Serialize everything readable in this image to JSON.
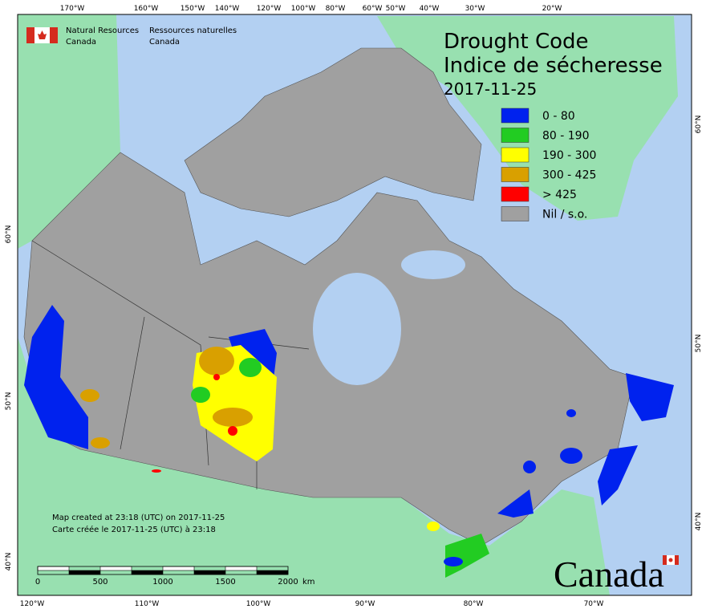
{
  "header": {
    "agency_en": [
      "Natural Resources",
      "Canada"
    ],
    "agency_fr": [
      "Ressources naturelles",
      "Canada"
    ]
  },
  "title": {
    "lines": [
      "Drought Code",
      "Indice de sécheresse"
    ],
    "date": "2017-11-25"
  },
  "legend": {
    "items": [
      {
        "label": "0 - 80",
        "color": "#0022ee"
      },
      {
        "label": "80 - 190",
        "color": "#22cc22"
      },
      {
        "label": "190 - 300",
        "color": "#ffff00"
      },
      {
        "label": "300 - 425",
        "color": "#d9a000"
      },
      {
        "label": "> 425",
        "color": "#ff0000"
      },
      {
        "label": "Nil / s.o.",
        "color": "#a0a0a0"
      }
    ]
  },
  "graticule": {
    "top": [
      "170°W",
      "160°W",
      "150°W",
      "140°W",
      "120°W",
      "100°W",
      "80°W",
      "60°W",
      "50°W",
      "40°W",
      "30°W",
      "20°W"
    ],
    "bottom": [
      "120°W",
      "110°W",
      "100°W",
      "90°W",
      "80°W",
      "70°W"
    ],
    "left": [
      "60°N",
      "50°N",
      "40°N"
    ],
    "right": [
      "60°N",
      "50°N",
      "40°N"
    ]
  },
  "footer": {
    "created": [
      "Map created at 23:18 (UTC) on 2017-11-25",
      "Carte créée le 2017-11-25 (UTC) à 23:18"
    ]
  },
  "scale_bar": {
    "labels": [
      "0",
      "500",
      "1000",
      "1500",
      "2000",
      "km"
    ]
  },
  "wordmark": "Canada"
}
